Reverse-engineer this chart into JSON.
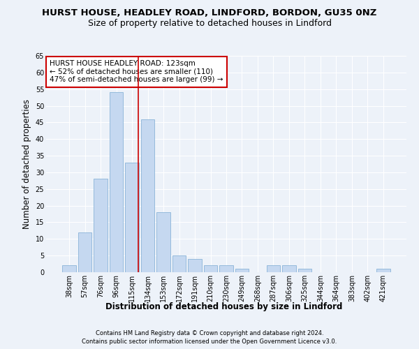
{
  "title_line1": "HURST HOUSE, HEADLEY ROAD, LINDFORD, BORDON, GU35 0NZ",
  "title_line2": "Size of property relative to detached houses in Lindford",
  "xlabel": "Distribution of detached houses by size in Lindford",
  "ylabel": "Number of detached properties",
  "categories": [
    "38sqm",
    "57sqm",
    "76sqm",
    "96sqm",
    "115sqm",
    "134sqm",
    "153sqm",
    "172sqm",
    "191sqm",
    "210sqm",
    "230sqm",
    "249sqm",
    "268sqm",
    "287sqm",
    "306sqm",
    "325sqm",
    "344sqm",
    "364sqm",
    "383sqm",
    "402sqm",
    "421sqm"
  ],
  "values": [
    2,
    12,
    28,
    54,
    33,
    46,
    18,
    5,
    4,
    2,
    2,
    1,
    0,
    2,
    2,
    1,
    0,
    0,
    0,
    0,
    1
  ],
  "bar_color": "#c5d8f0",
  "bar_edge_color": "#8ab4d8",
  "vline_color": "#cc0000",
  "vline_x_index": 4.42,
  "annotation_text": "HURST HOUSE HEADLEY ROAD: 123sqm\n← 52% of detached houses are smaller (110)\n47% of semi-detached houses are larger (99) →",
  "annotation_box_color": "white",
  "annotation_box_edge_color": "#cc0000",
  "ylim": [
    0,
    65
  ],
  "yticks": [
    0,
    5,
    10,
    15,
    20,
    25,
    30,
    35,
    40,
    45,
    50,
    55,
    60,
    65
  ],
  "footer1": "Contains HM Land Registry data © Crown copyright and database right 2024.",
  "footer2": "Contains public sector information licensed under the Open Government Licence v3.0.",
  "background_color": "#edf2f9",
  "grid_color": "white",
  "title_fontsize": 9.5,
  "subtitle_fontsize": 9,
  "axis_label_fontsize": 8.5,
  "tick_fontsize": 7,
  "annotation_fontsize": 7.5,
  "footer_fontsize": 6
}
